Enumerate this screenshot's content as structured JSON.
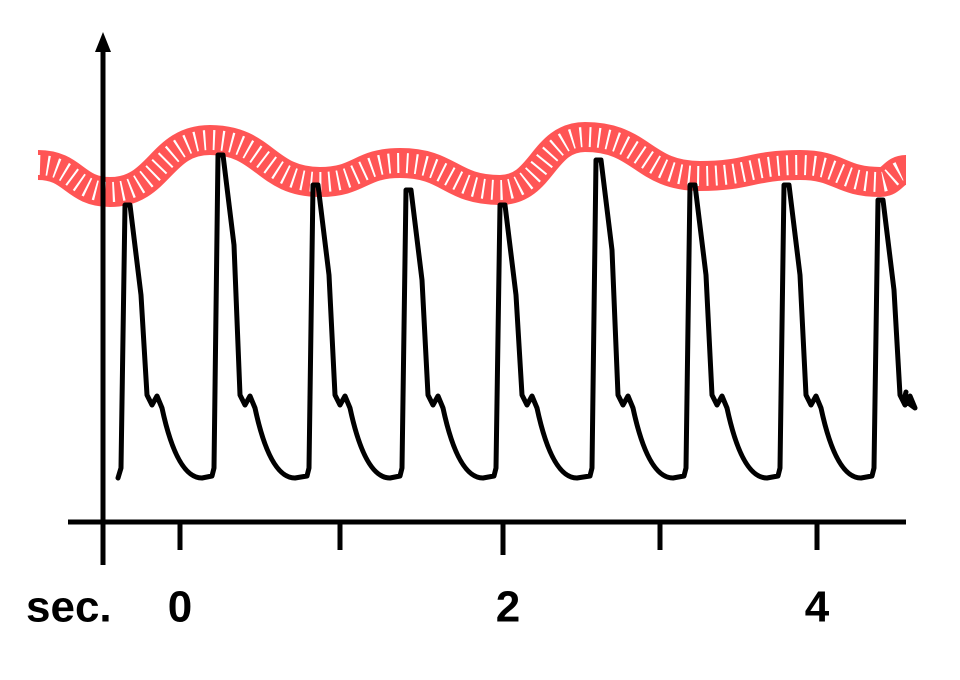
{
  "x_axis": {
    "unit": "sec.",
    "labels": [
      "0",
      "2",
      "4"
    ]
  }
}
